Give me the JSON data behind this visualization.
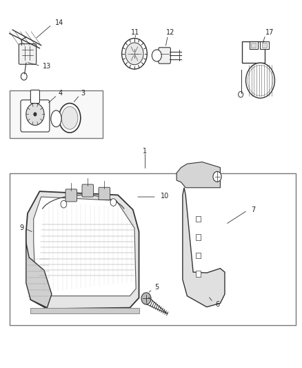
{
  "bg_color": "#ffffff",
  "line_color": "#333333",
  "text_color": "#222222",
  "figsize": [
    4.38,
    5.33
  ],
  "dpi": 100
}
